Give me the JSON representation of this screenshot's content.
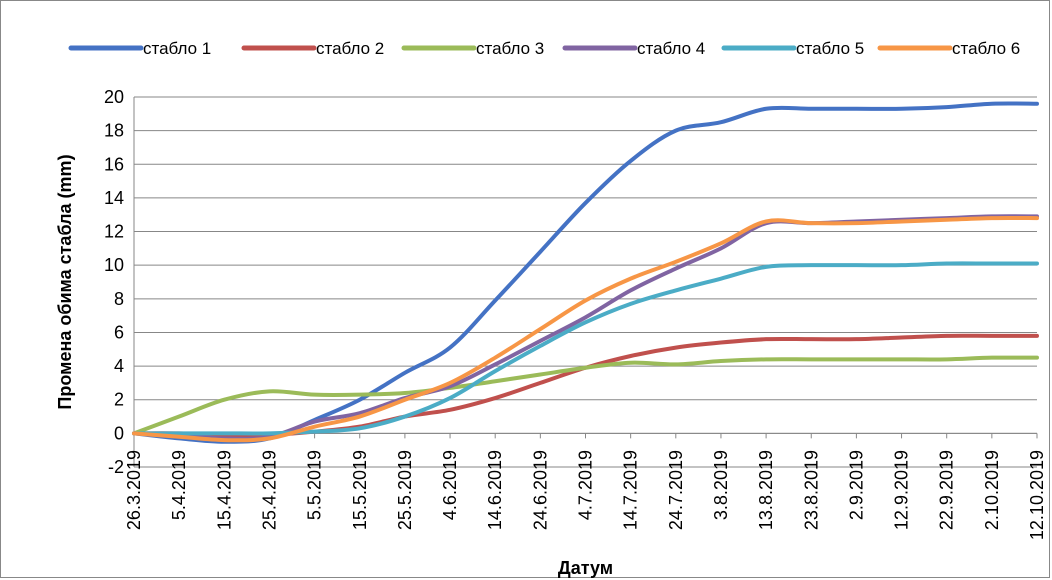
{
  "chart_data": {
    "type": "line",
    "title": "",
    "xlabel": "Датум",
    "ylabel": "Промена обима стабла (mm)",
    "ylim": [
      -2,
      20
    ],
    "yticks": [
      -2,
      0,
      2,
      4,
      6,
      8,
      10,
      12,
      14,
      16,
      18,
      20
    ],
    "grid": "horizontal",
    "legend_position": "top",
    "x_tick_labels": [
      "26.3.2019",
      "5.4.2019",
      "15.4.2019",
      "25.4.2019",
      "5.5.2019",
      "15.5.2019",
      "25.5.2019",
      "4.6.2019",
      "14.6.2019",
      "24.6.2019",
      "4.7.2019",
      "14.7.2019",
      "24.7.2019",
      "3.8.2019",
      "13.8.2019",
      "23.8.2019",
      "2.9.2019",
      "12.9.2019",
      "22.9.2019",
      "2.10.2019",
      "12.10.2019"
    ],
    "x": [
      "26.3.2019",
      "5.4.2019",
      "15.4.2019",
      "25.4.2019",
      "5.5.2019",
      "15.5.2019",
      "25.5.2019",
      "4.6.2019",
      "14.6.2019",
      "24.6.2019",
      "4.7.2019",
      "14.7.2019",
      "24.7.2019",
      "3.8.2019",
      "13.8.2019",
      "23.8.2019",
      "2.9.2019",
      "12.9.2019",
      "22.9.2019",
      "2.10.2019",
      "12.10.2019"
    ],
    "series": [
      {
        "name": "стабло 1",
        "color": "#4472C4",
        "values": [
          0,
          -0.3,
          -0.5,
          -0.3,
          0.8,
          2.0,
          3.6,
          5.1,
          7.9,
          10.8,
          13.7,
          16.2,
          18.0,
          18.5,
          19.3,
          19.3,
          19.3,
          19.3,
          19.4,
          19.6,
          19.6
        ]
      },
      {
        "name": "стабло 2",
        "color": "#C0504D",
        "values": [
          0,
          0.0,
          -0.1,
          -0.1,
          0.1,
          0.4,
          1.0,
          1.4,
          2.1,
          3.0,
          3.9,
          4.6,
          5.1,
          5.4,
          5.6,
          5.6,
          5.6,
          5.7,
          5.8,
          5.8,
          5.8
        ]
      },
      {
        "name": "стабло 3",
        "color": "#9BBB59",
        "values": [
          0,
          1.0,
          2.0,
          2.5,
          2.3,
          2.3,
          2.4,
          2.7,
          3.1,
          3.5,
          3.9,
          4.2,
          4.1,
          4.3,
          4.4,
          4.4,
          4.4,
          4.4,
          4.4,
          4.5,
          4.5
        ]
      },
      {
        "name": "стабло 4",
        "color": "#8064A2",
        "values": [
          0,
          -0.1,
          -0.3,
          -0.2,
          0.7,
          1.2,
          2.1,
          2.8,
          4.1,
          5.5,
          6.9,
          8.5,
          9.8,
          11.0,
          12.5,
          12.5,
          12.6,
          12.7,
          12.8,
          12.9,
          12.9
        ]
      },
      {
        "name": "стабло 5",
        "color": "#4BACC6",
        "values": [
          0,
          0.0,
          0.0,
          0.0,
          0.1,
          0.3,
          1.0,
          2.1,
          3.7,
          5.2,
          6.6,
          7.7,
          8.5,
          9.2,
          9.9,
          10.0,
          10.0,
          10.0,
          10.1,
          10.1,
          10.1
        ]
      },
      {
        "name": "стабло 6",
        "color": "#F79646",
        "values": [
          0,
          -0.2,
          -0.4,
          -0.3,
          0.4,
          1.0,
          2.0,
          3.0,
          4.5,
          6.2,
          7.9,
          9.2,
          10.2,
          11.3,
          12.6,
          12.5,
          12.5,
          12.6,
          12.7,
          12.8,
          12.8
        ]
      }
    ]
  }
}
